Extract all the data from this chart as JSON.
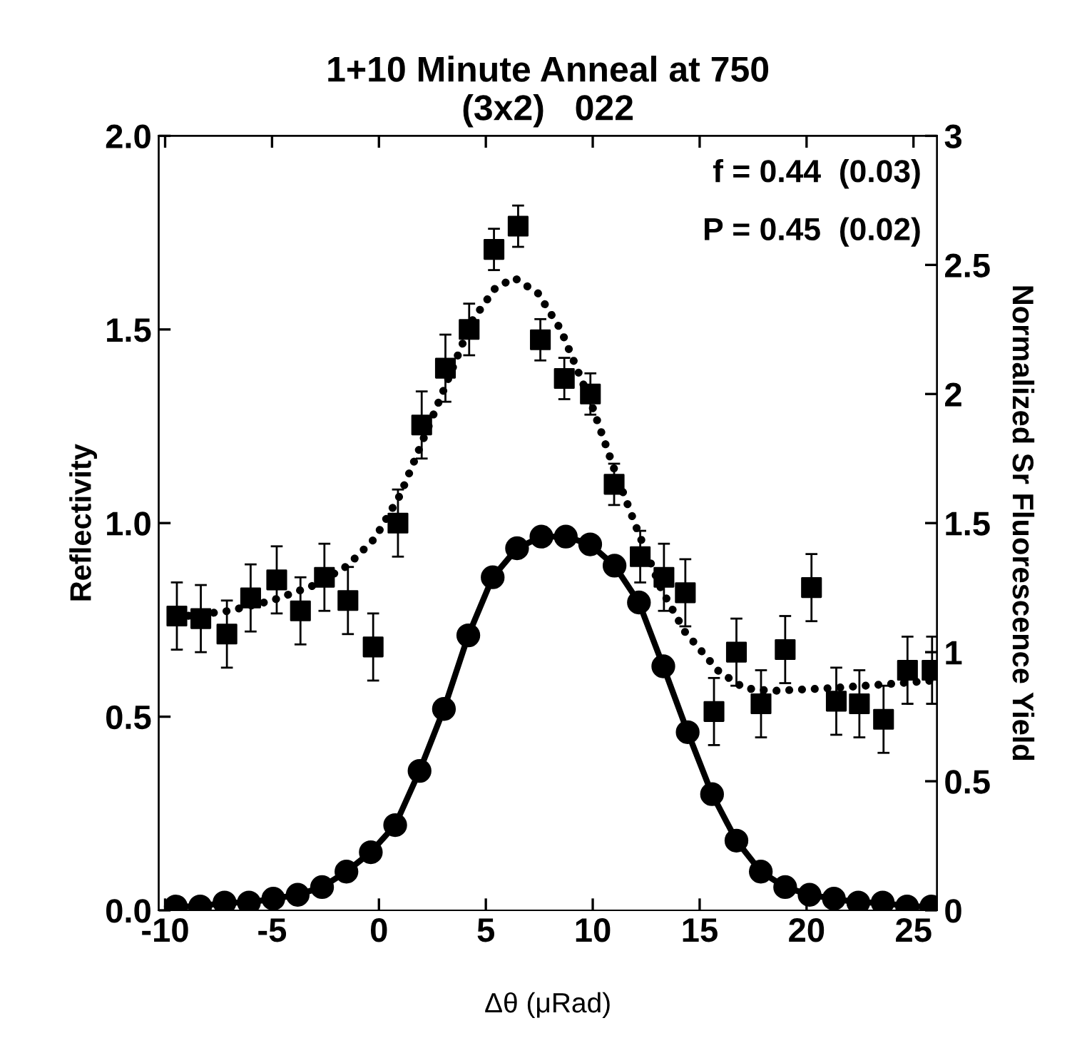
{
  "chart_data": {
    "type": "line",
    "title": "1+10 Minute Anneal at 750\n(3x2)   022",
    "xlabel": "Δθ (μRad)",
    "ylabel": "Reflectivity",
    "y2label": "Normalized Sr Fluorescence Yield",
    "annotations": [
      "f = 0.44  (0.03)",
      "P = 0.45  (0.02)"
    ],
    "xlim": [
      -10.3,
      26.1
    ],
    "xticks": [
      -10,
      -5,
      0,
      5,
      10,
      15,
      20,
      25
    ],
    "ylim": [
      0,
      2
    ],
    "yticks": [
      {
        "value": 0,
        "label": "0.0"
      },
      {
        "value": 0.5,
        "label": "0.5"
      },
      {
        "value": 1,
        "label": "1.0"
      },
      {
        "value": 1.5,
        "label": "1.5"
      },
      {
        "value": 2,
        "label": "2.0"
      }
    ],
    "y2lim": [
      0,
      3
    ],
    "y2ticks": [
      0,
      0.5,
      1,
      1.5,
      2,
      2.5,
      3
    ],
    "grid": false,
    "series": [
      {
        "type": "line",
        "axis": "y",
        "color": "#000000",
        "marker": "circle",
        "line_style": "solid",
        "x": [
          -9.5,
          -8.36,
          -7.22,
          -6.08,
          -4.94,
          -3.8,
          -2.66,
          -1.52,
          -0.38,
          0.76,
          1.9,
          3.04,
          4.18,
          5.32,
          6.46,
          7.6,
          8.74,
          9.88,
          11.02,
          12.16,
          13.3,
          14.44,
          15.58,
          16.72,
          17.86,
          19.0,
          20.14,
          21.28,
          22.42,
          23.56,
          24.7,
          25.84
        ],
        "values": [
          0.01,
          0.01,
          0.02,
          0.02,
          0.03,
          0.04,
          0.06,
          0.1,
          0.15,
          0.22,
          0.36,
          0.52,
          0.71,
          0.86,
          0.935,
          0.965,
          0.965,
          0.945,
          0.89,
          0.795,
          0.63,
          0.46,
          0.3,
          0.18,
          0.1,
          0.06,
          0.04,
          0.03,
          0.02,
          0.02,
          0.01,
          0.01
        ]
      },
      {
        "type": "scatter",
        "axis": "y2",
        "color": "#000000",
        "marker": "square",
        "x": [
          -9.45,
          -8.33,
          -7.11,
          -6.0,
          -4.78,
          -3.67,
          -2.55,
          -1.45,
          -0.27,
          0.89,
          2.0,
          3.11,
          4.22,
          5.38,
          6.51,
          7.55,
          8.67,
          9.89,
          11.0,
          12.22,
          13.33,
          14.33,
          15.67,
          16.72,
          17.87,
          19.0,
          20.23,
          21.39,
          22.47,
          23.6,
          24.72,
          25.87
        ],
        "values": [
          1.14,
          1.13,
          1.07,
          1.21,
          1.28,
          1.16,
          1.29,
          1.2,
          1.02,
          1.5,
          1.88,
          2.1,
          2.25,
          2.56,
          2.65,
          2.21,
          2.06,
          2.0,
          1.65,
          1.37,
          1.29,
          1.23,
          0.77,
          1.0,
          0.8,
          1.01,
          1.25,
          0.81,
          0.8,
          0.74,
          0.93,
          0.93
        ],
        "errors": [
          0.13,
          0.13,
          0.13,
          0.13,
          0.13,
          0.13,
          0.13,
          0.13,
          0.13,
          0.13,
          0.13,
          0.13,
          0.1,
          0.08,
          0.08,
          0.08,
          0.08,
          0.08,
          0.08,
          0.1,
          0.13,
          0.13,
          0.13,
          0.13,
          0.13,
          0.13,
          0.13,
          0.13,
          0.13,
          0.13,
          0.13,
          0.13
        ]
      },
      {
        "axis": "y2",
        "color": "#000000",
        "marker": "none",
        "line_style": "dotted",
        "x": [
          -9.5,
          -7,
          -5,
          -3,
          -1.47,
          -0.2,
          1,
          2.1,
          3.2,
          4.33,
          5.44,
          6.33,
          7.44,
          8.5,
          9.9,
          11,
          12.1,
          13.2,
          14.3,
          15.9,
          17.1,
          18.4,
          21,
          23.6,
          25.9
        ],
        "values": [
          1.135,
          1.16,
          1.2,
          1.26,
          1.335,
          1.44,
          1.61,
          1.83,
          2.05,
          2.28,
          2.41,
          2.45,
          2.39,
          2.25,
          1.97,
          1.71,
          1.47,
          1.245,
          1.08,
          0.925,
          0.86,
          0.85,
          0.86,
          0.875,
          0.89
        ]
      }
    ]
  }
}
